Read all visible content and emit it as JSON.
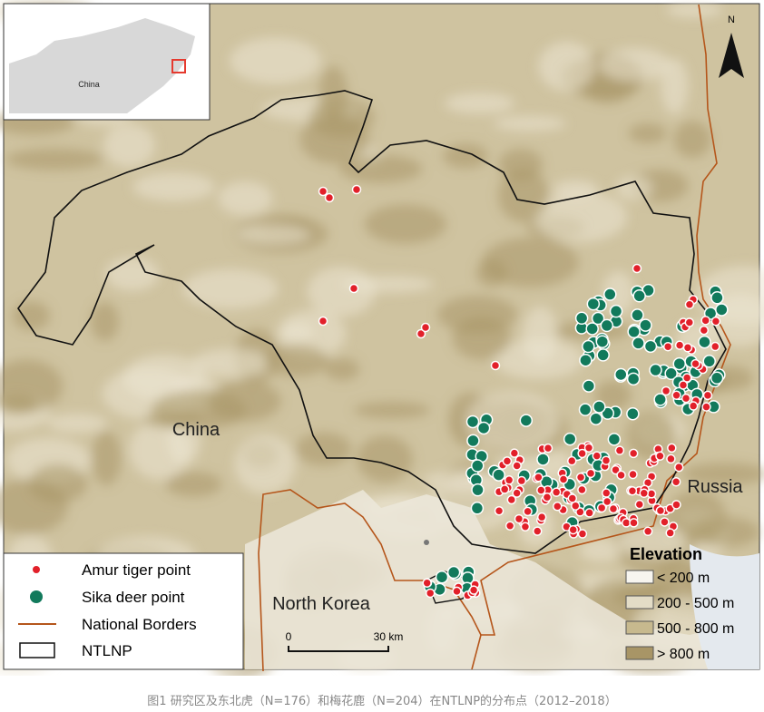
{
  "map": {
    "inset": {
      "label": "China"
    },
    "north": "N",
    "labels": {
      "china": "China",
      "russia": "Russia",
      "north_korea": "North Korea"
    },
    "legend": {
      "items": [
        "Amur tiger point",
        "Sika deer point",
        "National Borders",
        "NTLNP"
      ]
    },
    "elevation": {
      "title": "Elevation",
      "classes": [
        "< 200 m",
        "200 - 500 m",
        "500 - 800 m",
        "> 800 m"
      ]
    },
    "scale": {
      "start": "0",
      "end": "30 km"
    }
  },
  "caption": "图1 研究区及东北虎（N=176）和梅花鹿（N=204）在NTLNP的分布点（2012–2018）"
}
